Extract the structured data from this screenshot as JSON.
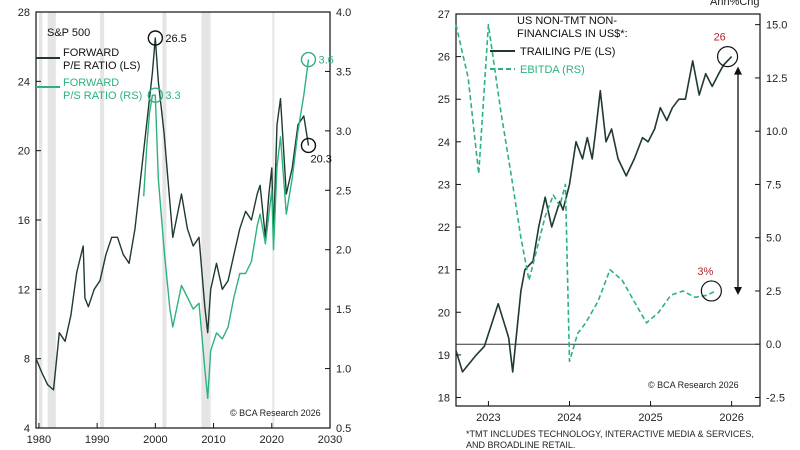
{
  "colors": {
    "dark": "#1f3a2e",
    "green": "#2db27d",
    "red": "#b3262e",
    "band": "#e5e5e5",
    "frame": "#111111"
  },
  "chart_data": [
    {
      "type": "line",
      "title": "S&P 500",
      "xlim": [
        1979.5,
        2030
      ],
      "x_ticks": [
        "1980",
        "1990",
        "2000",
        "2010",
        "2020",
        "2030"
      ],
      "y_left": {
        "lim": [
          4,
          28
        ],
        "ticks": [
          "4",
          "8",
          "12",
          "16",
          "20",
          "24",
          "28"
        ]
      },
      "y_right": {
        "lim": [
          0.5,
          4.0
        ],
        "ticks": [
          "0.5",
          "1.0",
          "1.5",
          "2.0",
          "2.5",
          "3.0",
          "3.5",
          "4.0"
        ]
      },
      "recessions": [
        [
          1980.0,
          1980.6
        ],
        [
          1981.5,
          1982.9
        ],
        [
          1990.5,
          1991.2
        ],
        [
          2001.2,
          2001.9
        ],
        [
          2007.9,
          2009.5
        ],
        [
          2020.1,
          2020.4
        ]
      ],
      "series": [
        {
          "name": "FORWARD P/E RATIO (LS)",
          "axis": "left",
          "color": "dark",
          "x": [
            1979.5,
            1980.5,
            1981.5,
            1982.5,
            1983.5,
            1984.5,
            1985.5,
            1986.5,
            1987.6,
            1987.9,
            1988.5,
            1989.5,
            1990.5,
            1991.5,
            1992.5,
            1993.5,
            1994.5,
            1995.5,
            1996.5,
            1997.5,
            1998.5,
            1999.5,
            2000.0,
            2000.5,
            2001.5,
            2002.5,
            2003.0,
            2004.5,
            2005.5,
            2006.5,
            2007.5,
            2008.5,
            2009.0,
            2009.5,
            2010.5,
            2011.5,
            2012.5,
            2013.5,
            2014.5,
            2015.5,
            2016.5,
            2017.5,
            2018.0,
            2018.9,
            2019.5,
            2020.0,
            2020.3,
            2020.9,
            2021.5,
            2022.5,
            2023.5,
            2024.5,
            2025.5,
            2026.3
          ],
          "y": [
            8.0,
            7.2,
            6.5,
            6.2,
            9.5,
            9.0,
            10.5,
            13.0,
            14.5,
            11.5,
            11.0,
            12.0,
            12.5,
            14.0,
            15.0,
            15.0,
            14.0,
            13.5,
            15.5,
            18.5,
            21.5,
            24.5,
            26.5,
            24.0,
            21.0,
            17.0,
            15.0,
            17.5,
            15.5,
            14.5,
            15.0,
            11.0,
            9.5,
            12.0,
            13.5,
            12.0,
            12.5,
            14.0,
            15.5,
            16.5,
            16.0,
            17.5,
            18.0,
            15.0,
            17.5,
            19.0,
            15.0,
            21.5,
            23.0,
            17.5,
            19.0,
            21.5,
            22.0,
            20.3
          ]
        },
        {
          "name": "FORWARD P/S RATIO (RS)",
          "axis": "right",
          "color": "green",
          "x": [
            1998.0,
            1998.5,
            1999.0,
            1999.5,
            2000.0,
            2000.5,
            2001.5,
            2002.5,
            2003.0,
            2004.5,
            2005.5,
            2006.5,
            2007.5,
            2008.5,
            2009.0,
            2009.5,
            2010.5,
            2011.5,
            2012.5,
            2013.5,
            2014.5,
            2015.5,
            2016.5,
            2017.5,
            2018.0,
            2018.9,
            2019.5,
            2020.0,
            2020.3,
            2020.9,
            2021.5,
            2022.5,
            2023.5,
            2024.5,
            2025.5,
            2026.3
          ],
          "y": [
            2.45,
            2.85,
            3.15,
            3.3,
            3.3,
            2.6,
            2.0,
            1.5,
            1.35,
            1.7,
            1.6,
            1.5,
            1.55,
            1.0,
            0.75,
            1.15,
            1.3,
            1.25,
            1.35,
            1.6,
            1.8,
            1.8,
            1.9,
            2.2,
            2.3,
            2.05,
            2.3,
            2.5,
            2.0,
            2.7,
            2.95,
            2.3,
            2.6,
            3.0,
            3.3,
            3.6
          ]
        }
      ],
      "annotations": [
        {
          "text": "26.5",
          "x": 2000.0,
          "y": 26.5,
          "axis": "left"
        },
        {
          "text": "3.3",
          "x": 2000.0,
          "y": 3.3,
          "axis": "right"
        },
        {
          "text": "3.6",
          "x": 2026.3,
          "y": 3.6,
          "axis": "right"
        },
        {
          "text": "20.3",
          "x": 2026.3,
          "y": 20.3,
          "axis": "left"
        }
      ],
      "credit": "© BCA Research 2026"
    },
    {
      "type": "line",
      "title": "US NON-TMT NON-FINANCIALS IN US$*:",
      "ylabel_right": "Ann%Chg",
      "xlim": [
        2022.6,
        2026.35
      ],
      "x_ticks": [
        "2023",
        "2024",
        "2025",
        "2026"
      ],
      "y_left": {
        "lim": [
          17.8,
          27
        ],
        "ticks": [
          "18",
          "19",
          "20",
          "21",
          "22",
          "23",
          "24",
          "25",
          "26",
          "27"
        ]
      },
      "y_right": {
        "lim": [
          -2.9,
          15.5
        ],
        "ticks": [
          "-2.5",
          "0.0",
          "2.5",
          "5.0",
          "7.5",
          "10.0",
          "12.5",
          "15.0"
        ]
      },
      "zero_line": 0.0,
      "series": [
        {
          "name": "TRAILING P/E (LS)",
          "axis": "left",
          "color": "dark",
          "x": [
            2022.6,
            2022.68,
            2022.85,
            2022.95,
            2023.12,
            2023.25,
            2023.3,
            2023.4,
            2023.45,
            2023.55,
            2023.62,
            2023.7,
            2023.78,
            2023.88,
            2023.92,
            2024.0,
            2024.08,
            2024.16,
            2024.22,
            2024.28,
            2024.32,
            2024.38,
            2024.45,
            2024.52,
            2024.6,
            2024.7,
            2024.8,
            2024.9,
            2024.97,
            2025.05,
            2025.12,
            2025.2,
            2025.27,
            2025.35,
            2025.43,
            2025.52,
            2025.6,
            2025.68,
            2025.76,
            2025.84,
            2025.9,
            2026.0
          ],
          "y": [
            19.1,
            18.6,
            19.0,
            19.2,
            20.2,
            19.4,
            18.6,
            20.5,
            21.0,
            21.2,
            22.0,
            22.7,
            22.0,
            22.6,
            22.4,
            23.0,
            24.0,
            23.6,
            24.1,
            23.6,
            24.2,
            25.2,
            24.0,
            24.3,
            23.6,
            23.2,
            23.6,
            24.1,
            24.0,
            24.3,
            24.8,
            24.5,
            24.8,
            25.0,
            25.0,
            25.9,
            25.1,
            25.6,
            25.3,
            25.6,
            25.8,
            26.0
          ]
        },
        {
          "name": "EBITDA (RS)",
          "axis": "right",
          "color": "green",
          "x": [
            2022.6,
            2022.75,
            2022.88,
            2023.0,
            2023.15,
            2023.3,
            2023.4,
            2023.5,
            2023.6,
            2023.7,
            2023.8,
            2023.88,
            2023.95,
            2024.0,
            2024.1,
            2024.2,
            2024.35,
            2024.5,
            2024.65,
            2024.8,
            2024.95,
            2025.1,
            2025.25,
            2025.4,
            2025.55,
            2025.7,
            2025.8
          ],
          "y": [
            15.0,
            12.5,
            8.0,
            15.0,
            11.0,
            7.5,
            5.0,
            3.0,
            4.5,
            6.0,
            7.0,
            6.5,
            7.5,
            -0.8,
            0.5,
            1.0,
            2.0,
            3.5,
            3.0,
            2.0,
            1.0,
            1.5,
            2.3,
            2.5,
            2.2,
            2.3,
            2.5
          ]
        }
      ],
      "annotations": [
        {
          "text": "26",
          "x": 2025.95,
          "y": 26.0,
          "axis": "left",
          "color": "red"
        },
        {
          "text": "3%",
          "x": 2025.75,
          "y": 2.5,
          "axis": "right",
          "color": "red"
        }
      ],
      "credit": "© BCA Research 2026",
      "footnote_line1": "*TMT INCLUDES TECHNOLOGY, INTERACTIVE MEDIA & SERVICES,",
      "footnote_line2": "AND BROADLINE RETAIL."
    }
  ]
}
